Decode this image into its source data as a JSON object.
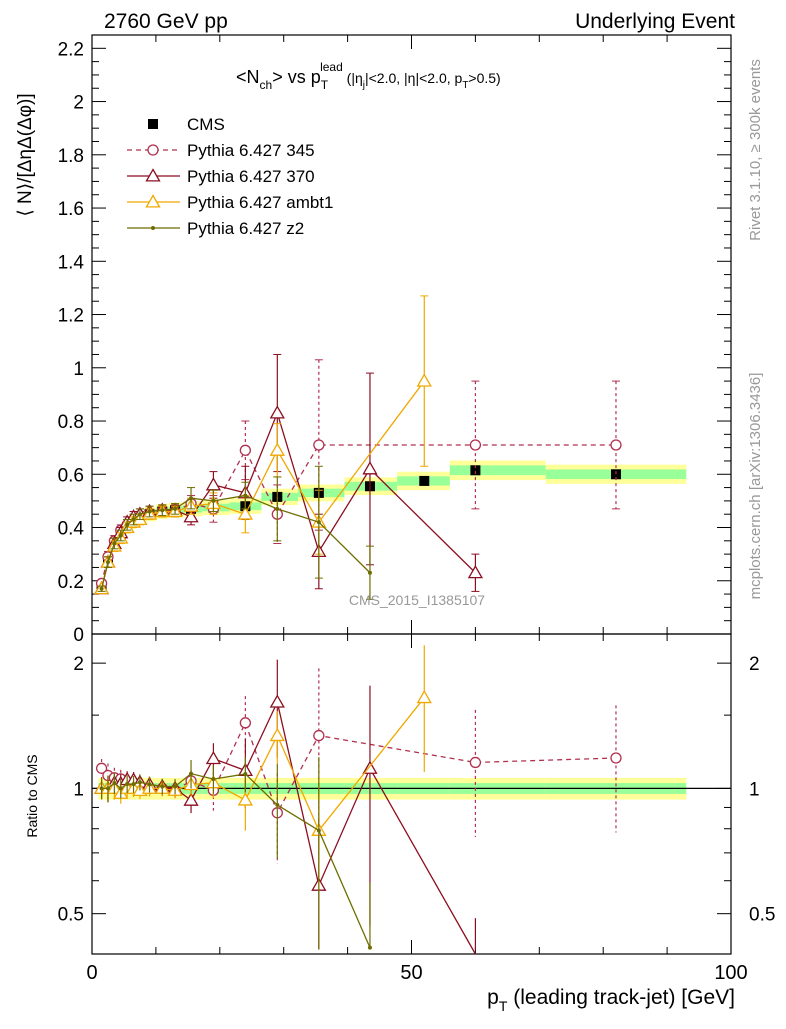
{
  "header": {
    "left": "2760 GeV pp",
    "right": "Underlying Event"
  },
  "side_labels": {
    "rivet": "Rivet 3.1.10, ≥ 300k events",
    "mcplots": "mcplots.cern.ch [arXiv:1306.3436]"
  },
  "watermark": "CMS_2015_I1385107",
  "chart_data": {
    "type": "line",
    "title": {
      "main": "<N",
      "main_sub": "ch",
      "main_mid": "> vs p",
      "main_sub2": "T",
      "main_sup": "lead",
      "cuts_a": " (|η",
      "cuts_a_sub": "j",
      "cuts_b": "|<2.0, |η|<2.0, p",
      "cuts_b_sub": "T",
      "cuts_c": ">0.5)"
    },
    "ylabel": "⟨ N⟩/[ΔηΔ(Δφ)]",
    "ratio_ylabel": "Ratio to CMS",
    "xlabel": "p",
    "xlabel_sub": "T",
    "xlabel_rest": " (leading track-jet) [GeV]",
    "xlim": [
      0,
      100
    ],
    "ylim": [
      0,
      2.25
    ],
    "ratio_ylim": [
      0.4,
      2.35
    ],
    "ratio_log": true,
    "x_ticks": [
      "0",
      "50",
      "100"
    ],
    "y_ticks": [
      "0",
      "0.2",
      "0.4",
      "0.6",
      "0.8",
      "1",
      "1.2",
      "1.4",
      "1.6",
      "1.8",
      "2",
      "2.2"
    ],
    "ratio_ticks": [
      "0.5",
      "1",
      "2"
    ],
    "x": [
      1.5,
      2.5,
      3.5,
      4.5,
      5.5,
      6.5,
      7.5,
      9,
      11,
      13,
      15.5,
      19,
      24,
      29,
      35.5,
      43.5,
      52,
      60,
      82
    ],
    "series": [
      {
        "name": "CMS",
        "color": "#000000",
        "marker": "square",
        "values": [
          0.17,
          0.27,
          0.33,
          0.37,
          0.4,
          0.42,
          0.435,
          0.45,
          0.46,
          0.465,
          0.47,
          0.475,
          0.48,
          0.515,
          0.53,
          0.555,
          0.575,
          0.615,
          0.6
        ]
      },
      {
        "name": "Pythia 6.427 345",
        "color": "#b03050",
        "marker": "open-circle",
        "dashed": true,
        "values": [
          0.19,
          0.29,
          0.35,
          0.39,
          0.41,
          0.43,
          0.44,
          0.45,
          0.46,
          0.46,
          0.49,
          0.47,
          0.69,
          0.45,
          0.71,
          null,
          null,
          0.71,
          0.71
        ],
        "errors": [
          0.01,
          0.02,
          0.02,
          0.02,
          0.02,
          0.02,
          0.02,
          0.02,
          0.02,
          0.02,
          0.03,
          0.05,
          0.11,
          0.11,
          0.32,
          null,
          null,
          0.24,
          0.24
        ]
      },
      {
        "name": "Pythia 6.427 370",
        "color": "#8b0f20",
        "marker": "open-triangle",
        "values": [
          0.17,
          0.27,
          0.34,
          0.38,
          0.42,
          0.44,
          0.45,
          0.46,
          0.465,
          0.465,
          0.44,
          0.56,
          0.53,
          0.83,
          0.31,
          0.62,
          null,
          0.23,
          null
        ],
        "errors": [
          0.01,
          0.02,
          0.02,
          0.02,
          0.02,
          0.02,
          0.02,
          0.02,
          0.02,
          0.02,
          0.03,
          0.05,
          0.1,
          0.22,
          0.14,
          0.36,
          null,
          0.07,
          null
        ]
      },
      {
        "name": "Pythia 6.427 ambt1",
        "color": "#f0a800",
        "marker": "open-triangle",
        "values": [
          0.17,
          0.27,
          0.33,
          0.36,
          0.4,
          0.42,
          0.43,
          0.45,
          0.46,
          0.46,
          0.48,
          0.49,
          0.45,
          0.69,
          0.42,
          null,
          0.95,
          null,
          null
        ],
        "errors": [
          0.01,
          0.02,
          0.02,
          0.02,
          0.02,
          0.02,
          0.02,
          0.02,
          0.02,
          0.02,
          0.03,
          0.04,
          0.07,
          0.1,
          0.12,
          null,
          0.32,
          null,
          null
        ]
      },
      {
        "name": "Pythia 6.427 z2",
        "color": "#6e6e00",
        "marker": "small-dot",
        "values": [
          0.17,
          0.27,
          0.34,
          0.37,
          0.41,
          0.43,
          0.45,
          0.46,
          0.465,
          0.47,
          0.51,
          0.5,
          0.52,
          0.47,
          0.42,
          0.23,
          null,
          null,
          null
        ],
        "errors": [
          0.01,
          0.02,
          0.02,
          0.02,
          0.02,
          0.02,
          0.02,
          0.02,
          0.02,
          0.02,
          0.04,
          0.04,
          0.05,
          0.12,
          0.21,
          0.1,
          null,
          null,
          null
        ]
      }
    ],
    "band_colors": [
      "#ffff99",
      "#99ff99"
    ],
    "grid": false,
    "legend_position": "top-left"
  }
}
